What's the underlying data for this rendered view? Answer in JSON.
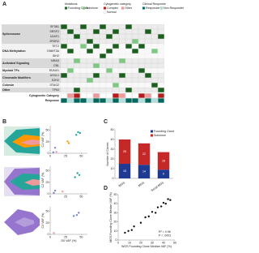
{
  "chart_data": [
    {
      "type": "heatmap",
      "label": "A",
      "legend_groups": [
        {
          "title": "Mutations",
          "items": [
            {
              "name": "Founding Clone",
              "color": "#1b5e20"
            },
            {
              "name": "Subclone",
              "color": "#81c784"
            }
          ]
        },
        {
          "title": "Cytogenetic category",
          "items": [
            {
              "name": "Complex",
              "color": "#b71c1c"
            },
            {
              "name": "Other",
              "color": "#ef9a9a"
            },
            {
              "name": "Normal",
              "color": "#ffffff"
            }
          ]
        },
        {
          "title": "Clinical Response",
          "items": [
            {
              "name": "Responder",
              "color": "#00695c"
            },
            {
              "name": "Non Responder",
              "color": "#b2dfdb"
            }
          ]
        }
      ],
      "groups": [
        {
          "name": "Spliceosome",
          "rows": [
            {
              "name": "SF3B1",
              "values": [
                1,
                0,
                0,
                1,
                0,
                0,
                1,
                0,
                0,
                0,
                1,
                0,
                0,
                0,
                0,
                0
              ]
            },
            {
              "name": "SRSF2",
              "values": [
                0,
                1,
                0,
                0,
                0,
                1,
                0,
                0,
                1,
                0,
                0,
                0,
                0,
                1,
                0,
                0
              ]
            },
            {
              "name": "U2AF1",
              "values": [
                0,
                0,
                1,
                0,
                0,
                0,
                0,
                1,
                0,
                0,
                0,
                0,
                0,
                0,
                0,
                1
              ]
            },
            {
              "name": "ZRSR2",
              "values": [
                0,
                0,
                0,
                0,
                1,
                0,
                0,
                0,
                0,
                0,
                0,
                2,
                0,
                0,
                0,
                0
              ]
            }
          ]
        },
        {
          "name": "DNA Methylation",
          "rows": [
            {
              "name": "TET2",
              "values": [
                1,
                0,
                0,
                2,
                0,
                1,
                0,
                0,
                1,
                0,
                1,
                0,
                1,
                0,
                0,
                0
              ]
            },
            {
              "name": "DNMT3A",
              "values": [
                0,
                1,
                0,
                0,
                1,
                0,
                0,
                1,
                0,
                0,
                0,
                1,
                0,
                0,
                2,
                0
              ]
            },
            {
              "name": "IDH2",
              "values": [
                0,
                0,
                0,
                0,
                0,
                0,
                1,
                0,
                0,
                0,
                0,
                0,
                0,
                0,
                0,
                0
              ]
            }
          ]
        },
        {
          "name": "Activated Signaling",
          "rows": [
            {
              "name": "NRAS",
              "values": [
                0,
                0,
                2,
                0,
                0,
                0,
                0,
                0,
                0,
                2,
                0,
                0,
                0,
                0,
                0,
                0
              ]
            },
            {
              "name": "CBL",
              "values": [
                0,
                0,
                0,
                0,
                0,
                2,
                0,
                0,
                0,
                0,
                0,
                0,
                0,
                0,
                0,
                0
              ]
            }
          ]
        },
        {
          "name": "Myeloid TFs",
          "rows": [
            {
              "name": "RUNX1",
              "values": [
                0,
                2,
                0,
                0,
                0,
                0,
                0,
                2,
                0,
                0,
                0,
                0,
                1,
                0,
                0,
                0
              ]
            }
          ]
        },
        {
          "name": "Chromatin Modifiers",
          "rows": [
            {
              "name": "ASXL1",
              "values": [
                1,
                0,
                0,
                0,
                0,
                1,
                0,
                0,
                0,
                1,
                0,
                0,
                0,
                1,
                0,
                0
              ]
            },
            {
              "name": "EZH2",
              "values": [
                0,
                0,
                0,
                0,
                2,
                0,
                0,
                0,
                0,
                0,
                0,
                0,
                0,
                0,
                0,
                0
              ]
            }
          ]
        },
        {
          "name": "Cohesin",
          "rows": [
            {
              "name": "STAG2",
              "values": [
                0,
                0,
                0,
                0,
                0,
                0,
                0,
                0,
                2,
                0,
                0,
                0,
                0,
                0,
                1,
                0
              ]
            }
          ]
        },
        {
          "name": "Other",
          "rows": [
            {
              "name": "TP53",
              "values": [
                0,
                0,
                1,
                0,
                0,
                0,
                0,
                0,
                0,
                0,
                1,
                0,
                0,
                0,
                0,
                1
              ]
            }
          ]
        }
      ],
      "annotation_rows": [
        {
          "name": "Cytogenetic Category",
          "values": [
            3,
            2,
            1,
            3,
            3,
            2,
            3,
            3,
            1,
            2,
            3,
            3,
            1,
            2,
            3,
            1
          ]
        },
        {
          "name": "Response",
          "values": [
            1,
            2,
            1,
            1,
            2,
            1,
            1,
            2,
            1,
            2,
            1,
            1,
            2,
            1,
            2,
            1
          ]
        }
      ]
    },
    {
      "type": "scatter",
      "label": "B",
      "ylabel": "C1 VAF (%)",
      "xlim": [
        0,
        60
      ],
      "ylim": [
        0,
        60
      ],
      "xticks": [
        0,
        25,
        50
      ],
      "yticks": [
        0,
        25,
        50
      ],
      "x": [
        45,
        48,
        42,
        30,
        28,
        10,
        8,
        5
      ],
      "y": [
        46,
        44,
        40,
        22,
        26,
        3,
        12,
        2
      ],
      "point_colors": [
        "#26a69a",
        "#26a69a",
        "#26a69a",
        "#ff9800",
        "#ff9800",
        "#ef9a9a",
        "#7986cb",
        "#7986cb"
      ]
    },
    {
      "type": "scatter",
      "ylabel": "C2 VAF (%)",
      "xlim": [
        0,
        60
      ],
      "ylim": [
        0,
        60
      ],
      "xticks": [
        0,
        25,
        50
      ],
      "yticks": [
        0,
        25,
        50
      ],
      "x": [
        44,
        47,
        40,
        20,
        8,
        6
      ],
      "y": [
        45,
        41,
        36,
        5,
        7,
        2
      ],
      "point_colors": [
        "#26a69a",
        "#26a69a",
        "#26a69a",
        "#ef9a9a",
        "#7986cb",
        "#7986cb"
      ]
    },
    {
      "type": "scatter",
      "ylabel": "C3 VAF (%)",
      "xlabel": "D0 VAF (%)",
      "xlim": [
        0,
        60
      ],
      "ylim": [
        0,
        60
      ],
      "xticks": [
        0,
        25,
        50
      ],
      "yticks": [
        0,
        25,
        50
      ],
      "x": [
        46,
        43,
        38,
        6
      ],
      "y": [
        47,
        42,
        40,
        3
      ],
      "point_colors": [
        "#7986cb",
        "#7986cb",
        "#7986cb",
        "#ef9a9a"
      ]
    },
    {
      "type": "bar",
      "label": "C",
      "ylabel": "Number of Clones",
      "categories": [
        "WGS",
        "MGS",
        "Serial MGS"
      ],
      "series": [
        {
          "name": "Founding Clone",
          "color": "#1f3a93",
          "values": [
            15,
            14,
            9
          ]
        },
        {
          "name": "Subclone",
          "color": "#c62828",
          "values": [
            25,
            22,
            18
          ]
        }
      ],
      "ylim": [
        0,
        50
      ],
      "yticks": [
        0,
        10,
        20,
        30,
        40,
        50
      ]
    },
    {
      "type": "scatter",
      "label": "D",
      "xlabel": "WGS Founding Clone Median VAF (%)",
      "ylabel": "MGS Founding Clone Median VAF (%)",
      "xlim": [
        0,
        50
      ],
      "ylim": [
        0,
        50
      ],
      "xticks": [
        0,
        10,
        20,
        30,
        40,
        50
      ],
      "yticks": [
        0,
        10,
        20,
        30,
        40,
        50
      ],
      "x": [
        6,
        9,
        12,
        14,
        20,
        24,
        27,
        30,
        33,
        35,
        38,
        40,
        42,
        44,
        46
      ],
      "y": [
        8,
        10,
        11,
        15,
        19,
        25,
        26,
        31,
        30,
        36,
        37,
        41,
        40,
        45,
        44
      ],
      "color": "#111111",
      "annotations": [
        "R² = 0.96",
        "P < .0001"
      ]
    }
  ]
}
